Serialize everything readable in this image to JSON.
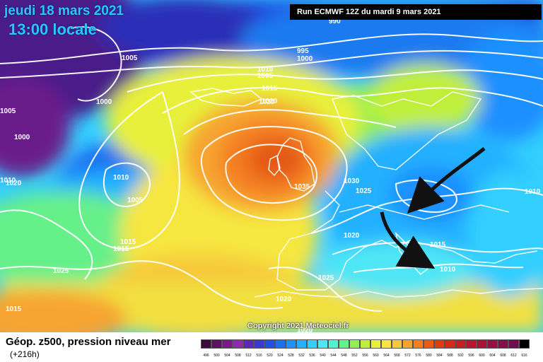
{
  "header": {
    "date": "jeudi 18 mars 2021",
    "time": "13:00 locale",
    "run": "Run ECMWF 12Z du mardi 9 mars 2021"
  },
  "copyright": "Copyright 2021 Meteociel.fr",
  "footer": {
    "title": "Géop. z500, pression niveau mer",
    "lead": "(+216h)"
  },
  "scale": {
    "labels": [
      "496",
      "500",
      "504",
      "508",
      "512",
      "516",
      "520",
      "524",
      "528",
      "532",
      "536",
      "540",
      "544",
      "548",
      "552",
      "556",
      "560",
      "564",
      "568",
      "572",
      "576",
      "580",
      "584",
      "588",
      "592",
      "596",
      "600",
      "604",
      "608",
      "612",
      "616"
    ],
    "colors": [
      "#3d0a3d",
      "#5a1263",
      "#7a1a8a",
      "#8f2aa8",
      "#5b2bb0",
      "#3a3ad0",
      "#2050e6",
      "#1e6ef0",
      "#1e90ff",
      "#22b0ff",
      "#33cfff",
      "#4fe6f5",
      "#55f0cc",
      "#66f08a",
      "#90ef55",
      "#c0ef3a",
      "#e8f03a",
      "#f6e640",
      "#f6c83a",
      "#f6a430",
      "#f47e22",
      "#ec5a18",
      "#e03c14",
      "#d42a1a",
      "#c61e24",
      "#b8162e",
      "#a81238",
      "#961042",
      "#820e4a",
      "#6e0c50",
      "#000000"
    ]
  },
  "pressure_labels": [
    "990",
    "995",
    "1000",
    "1005",
    "1010",
    "1015",
    "1020",
    "1000",
    "1005",
    "1000",
    "1005",
    "1010",
    "1015",
    "1020",
    "1025",
    "1010",
    "1005",
    "1015",
    "1025",
    "1020",
    "1035",
    "1030",
    "1025",
    "1020",
    "1020",
    "1015",
    "1015",
    "1010",
    "1010",
    "1020"
  ],
  "icons": [
    "arrow-icon",
    "arrow-icon"
  ],
  "colors": {
    "date_text": "#29c7ff",
    "run_bg": "#000000"
  }
}
